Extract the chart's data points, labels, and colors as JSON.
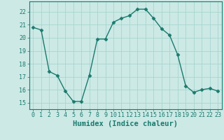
{
  "x": [
    0,
    1,
    2,
    3,
    4,
    5,
    6,
    7,
    8,
    9,
    10,
    11,
    12,
    13,
    14,
    15,
    16,
    17,
    18,
    19,
    20,
    21,
    22,
    23
  ],
  "y": [
    20.8,
    20.6,
    17.4,
    17.1,
    15.9,
    15.1,
    15.1,
    17.1,
    19.9,
    19.9,
    21.2,
    21.5,
    21.7,
    22.2,
    22.2,
    21.5,
    20.7,
    20.2,
    18.7,
    16.3,
    15.8,
    16.0,
    16.1,
    15.9
  ],
  "line_color": "#1a7a6e",
  "marker": "D",
  "markersize": 2.5,
  "linewidth": 1.0,
  "bg_color": "#cce9e5",
  "grid_color_major": "#a8d5cf",
  "grid_color_minor": "#b8ddd9",
  "xlabel": "Humidex (Indice chaleur)",
  "xlim": [
    -0.5,
    23.5
  ],
  "ylim": [
    14.5,
    22.8
  ],
  "yticks": [
    15,
    16,
    17,
    18,
    19,
    20,
    21,
    22
  ],
  "xticks": [
    0,
    1,
    2,
    3,
    4,
    5,
    6,
    7,
    8,
    9,
    10,
    11,
    12,
    13,
    14,
    15,
    16,
    17,
    18,
    19,
    20,
    21,
    22,
    23
  ],
  "tick_color": "#1a7a6e",
  "label_fontsize": 7.5,
  "tick_fontsize": 6.0,
  "spine_color": "#1a7a6e"
}
